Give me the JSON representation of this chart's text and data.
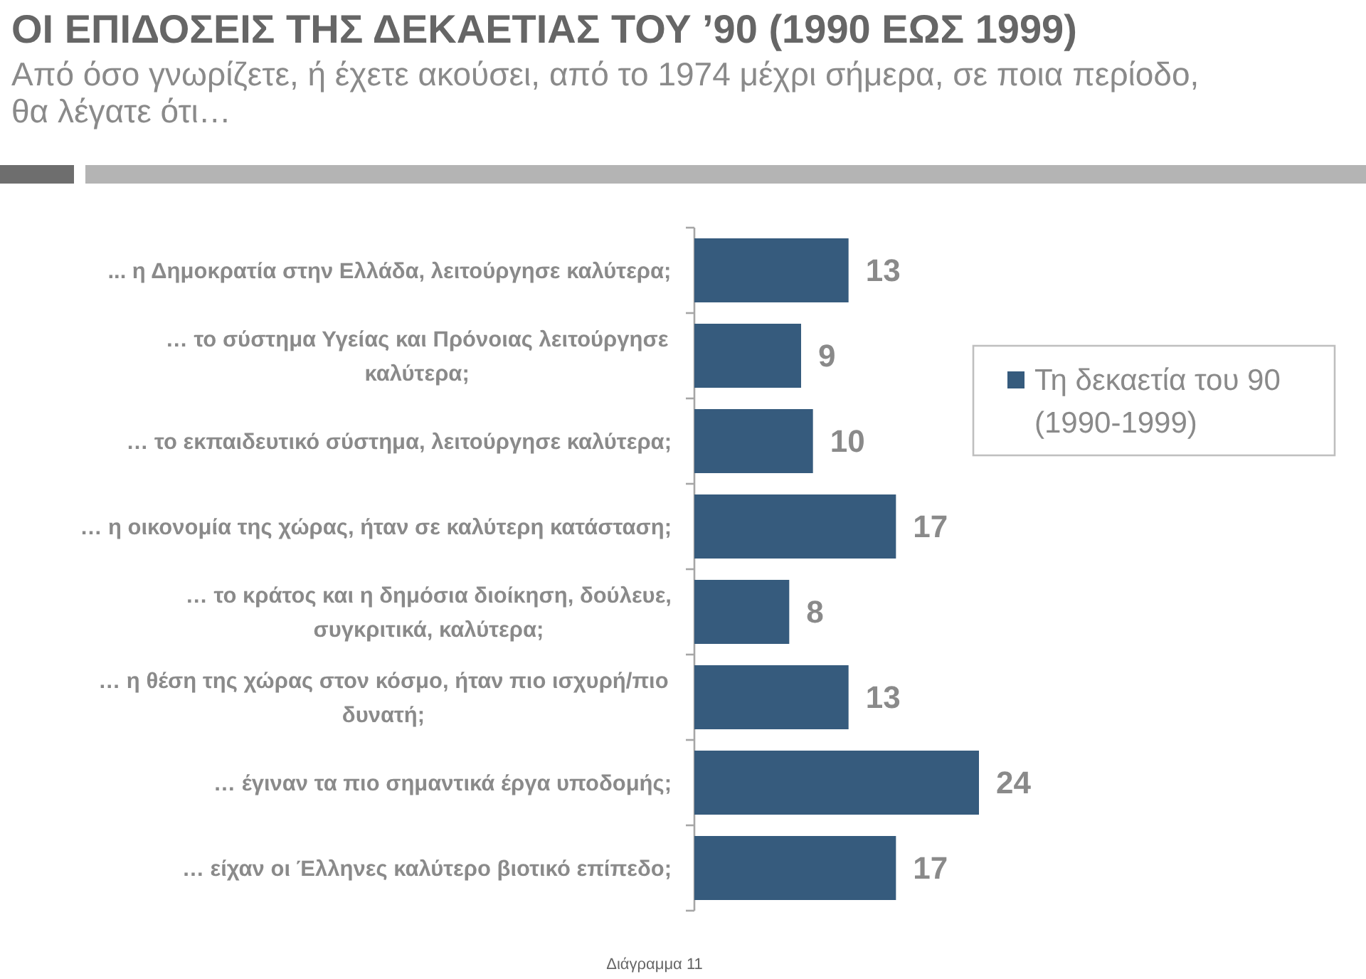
{
  "chart_data": {
    "type": "bar",
    "orientation": "horizontal",
    "title": "ΟΙ ΕΠΙΔΟΣΕΙΣ ΤΗΣ ΔΕΚΑΕΤΙΑΣ ΤΟΥ ’90 (1990 ΕΩΣ 1999)",
    "subtitle": "Από όσο γνωρίζετε, ή έχετε ακούσει, από το 1974 μέχρι σήμερα, σε ποια περίοδο, θα λέγατε ότι…",
    "categories": [
      "... η Δημοκρατία στην Ελλάδα, λειτούργησε καλύτερα;",
      "… το σύστημα Υγείας και Πρόνοιας  λειτούργησε καλύτερα;",
      "… το εκπαιδευτικό σύστημα, λειτούργησε καλύτερα;",
      "… η οικονομία της χώρας, ήταν σε καλύτερη κατάσταση;",
      "… το κράτος και η δημόσια διοίκηση, δούλευε, συγκριτικά, καλύτερα;",
      "… η θέση της χώρας στον κόσμο,  ήταν πιο ισχυρή/πιο δυνατή;",
      "… έγιναν τα πιο σημαντικά έργα υποδομής;",
      "… είχαν οι Έλληνες καλύτερο βιοτικό επίπεδο;"
    ],
    "series": [
      {
        "name": "Τη δεκαετία του 90 (1990-1999)",
        "color": "#365b7d",
        "values": [
          13,
          9,
          10,
          17,
          8,
          13,
          24,
          17
        ]
      }
    ],
    "data_labels": true,
    "legend": "right",
    "annotations": [
      "Διάγραμμα 11"
    ]
  }
}
